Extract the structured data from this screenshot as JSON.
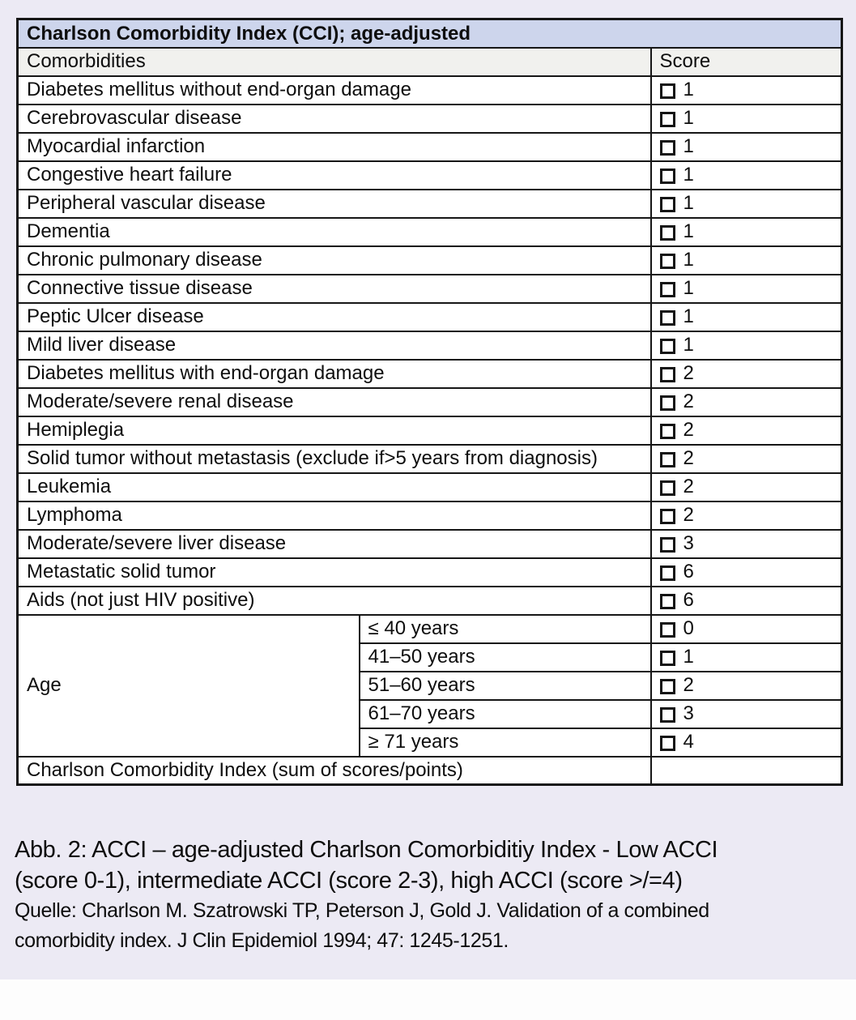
{
  "table": {
    "title": "Charlson Comorbidity Index (CCI); age-adjusted",
    "columns": {
      "comorbidities": "Comorbidities",
      "score": "Score"
    },
    "rows": [
      {
        "label": "Diabetes mellitus without end-organ damage",
        "score": "1"
      },
      {
        "label": "Cerebrovascular disease",
        "score": "1"
      },
      {
        "label": "Myocardial infarction",
        "score": "1"
      },
      {
        "label": "Congestive heart failure",
        "score": "1"
      },
      {
        "label": "Peripheral vascular disease",
        "score": "1"
      },
      {
        "label": "Dementia",
        "score": "1"
      },
      {
        "label": "Chronic pulmonary disease",
        "score": "1"
      },
      {
        "label": "Connective tissue disease",
        "score": "1"
      },
      {
        "label": "Peptic Ulcer disease",
        "score": "1"
      },
      {
        "label": "Mild liver disease",
        "score": "1"
      },
      {
        "label": "Diabetes mellitus with end-organ damage",
        "score": "2"
      },
      {
        "label": "Moderate/severe renal disease",
        "score": "2"
      },
      {
        "label": "Hemiplegia",
        "score": "2"
      },
      {
        "label": "Solid tumor without metastasis (exclude if>5 years from diagnosis)",
        "score": "2"
      },
      {
        "label": "Leukemia",
        "score": "2"
      },
      {
        "label": "Lymphoma",
        "score": "2"
      },
      {
        "label": "Moderate/severe liver disease",
        "score": "3"
      },
      {
        "label": "Metastatic solid tumor",
        "score": "6"
      },
      {
        "label": "Aids (not just HIV positive)",
        "score": "6"
      }
    ],
    "age": {
      "label": "Age",
      "ranges": [
        {
          "label": "≤ 40 years",
          "score": "0"
        },
        {
          "label": "41–50 years",
          "score": "1"
        },
        {
          "label": "51–60 years",
          "score": "2"
        },
        {
          "label": "61–70 years",
          "score": "3"
        },
        {
          "label": "≥ 71 years",
          "score": "4"
        }
      ]
    },
    "sum_row": {
      "label": "Charlson Comorbidity Index (sum of scores/points)",
      "score": ""
    },
    "checkbox_state": "unchecked"
  },
  "caption": {
    "lines": [
      "Abb. 2: ACCI – age-adjusted Charlson Comorbiditiy Index - Low ACCI",
      "(score 0-1), intermediate ACCI (score 2-3), high ACCI (score >/=4)",
      "Quelle: Charlson  M. Szatrowski TP, Peterson J, Gold J. Validation of a combined",
      "comorbidity index. J Clin Epidemiol 1994; 47: 1245-1251."
    ]
  },
  "colors": {
    "page_background": "#eceaf4",
    "title_row_background": "#cdd5ec",
    "header_row_background": "#f1f1ee",
    "table_border": "#161616",
    "text": "#0e0e0e"
  }
}
